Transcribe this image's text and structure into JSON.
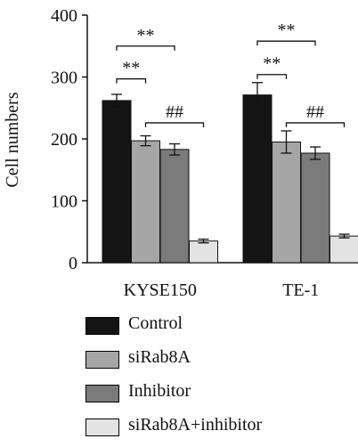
{
  "chart_data": {
    "type": "bar",
    "categories": [
      "KYSE150",
      "TE-1"
    ],
    "ylabel": "Cell numbers",
    "ylim": [
      0,
      400
    ],
    "yticks": [
      0,
      100,
      200,
      300,
      400
    ],
    "series": [
      {
        "name": "Control",
        "color": "#141414",
        "values": [
          262,
          271
        ],
        "errors": [
          10,
          20
        ]
      },
      {
        "name": "siRab8A",
        "color": "#a6a6a6",
        "values": [
          197,
          195
        ],
        "errors": [
          8,
          18
        ]
      },
      {
        "name": "Inhibitor",
        "color": "#7b7b7b",
        "values": [
          183,
          177
        ],
        "errors": [
          9,
          10
        ]
      },
      {
        "name": "siRab8A+inhibitor",
        "color": "#e3e3e3",
        "values": [
          35,
          43
        ],
        "errors": [
          3,
          3
        ]
      }
    ],
    "annotations": [
      {
        "group": "KYSE150",
        "from": 0,
        "to": 1,
        "y": 297,
        "text": "**"
      },
      {
        "group": "KYSE150",
        "from": 0,
        "to": 2,
        "y": 350,
        "text": "**"
      },
      {
        "group": "KYSE150",
        "from": 1,
        "to": 3,
        "y": 226,
        "text": "##"
      },
      {
        "group": "TE-1",
        "from": 0,
        "to": 1,
        "y": 304,
        "text": "**"
      },
      {
        "group": "TE-1",
        "from": 0,
        "to": 2,
        "y": 358,
        "text": "**"
      },
      {
        "group": "TE-1",
        "from": 1,
        "to": 3,
        "y": 226,
        "text": "##"
      }
    ]
  }
}
